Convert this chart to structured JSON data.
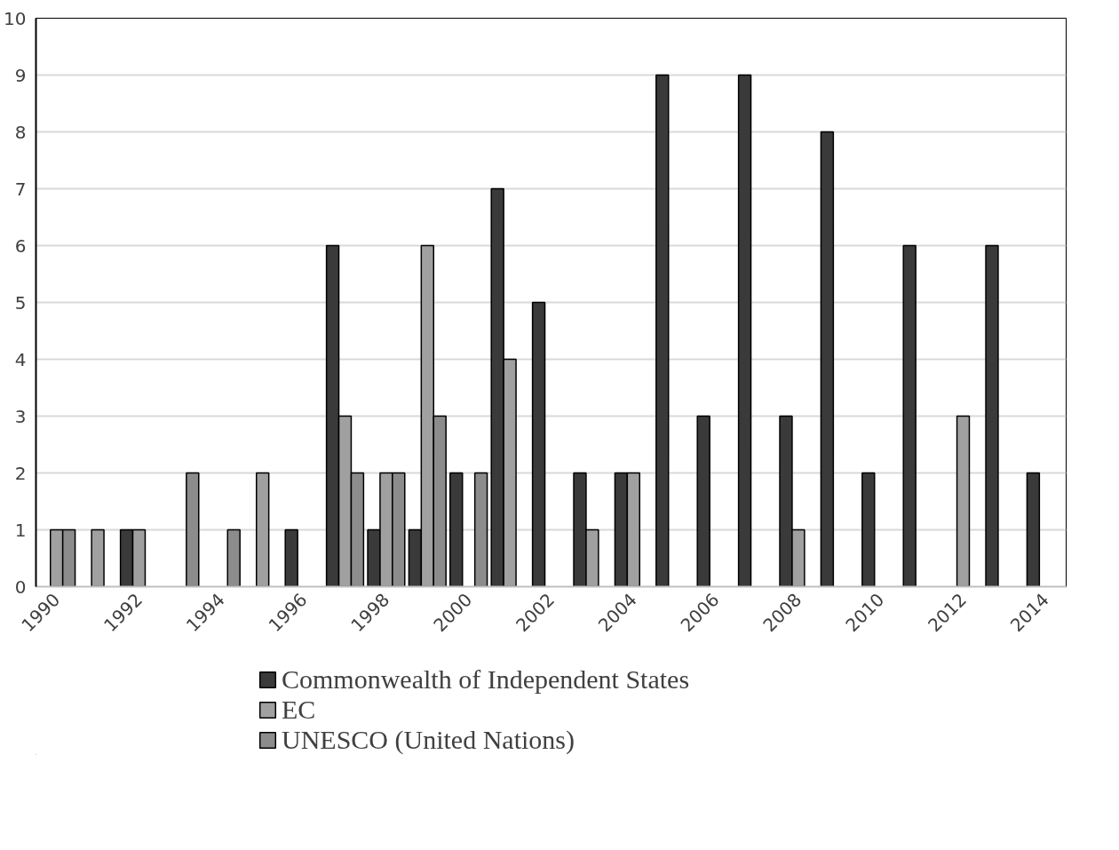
{
  "chart_data": {
    "type": "bar",
    "categories": [
      "1990",
      null,
      "1992",
      null,
      "1994",
      null,
      "1996",
      null,
      "1998",
      null,
      "2000",
      null,
      "2002",
      null,
      "2004",
      null,
      "2006",
      null,
      "2008",
      null,
      "2010",
      null,
      "2012",
      null,
      "2014"
    ],
    "series": [
      {
        "name": "Commonwealth of Independent States",
        "color": "#3a3a3a",
        "values": [
          null,
          null,
          1,
          null,
          null,
          null,
          1,
          6,
          1,
          1,
          2,
          7,
          5,
          2,
          2,
          9,
          3,
          9,
          3,
          8,
          2,
          6,
          null,
          6,
          2
        ]
      },
      {
        "name": "EC",
        "color": "#a0a0a0",
        "values": [
          1,
          1,
          1,
          null,
          null,
          2,
          null,
          3,
          2,
          6,
          null,
          4,
          null,
          1,
          2,
          null,
          null,
          null,
          1,
          null,
          null,
          null,
          3,
          null,
          null
        ]
      },
      {
        "name": "UNESCO (United Nations)",
        "color": "#8c8c8c",
        "values": [
          1,
          null,
          null,
          2,
          1,
          null,
          null,
          2,
          2,
          3,
          2,
          null,
          null,
          null,
          null,
          null,
          null,
          null,
          null,
          null,
          null,
          null,
          null,
          null,
          null
        ]
      }
    ],
    "ylim": [
      0,
      10
    ],
    "yticks": [
      0,
      1,
      2,
      3,
      4,
      5,
      6,
      7,
      8,
      9,
      10
    ],
    "grid": "y",
    "legend": "bottom"
  }
}
